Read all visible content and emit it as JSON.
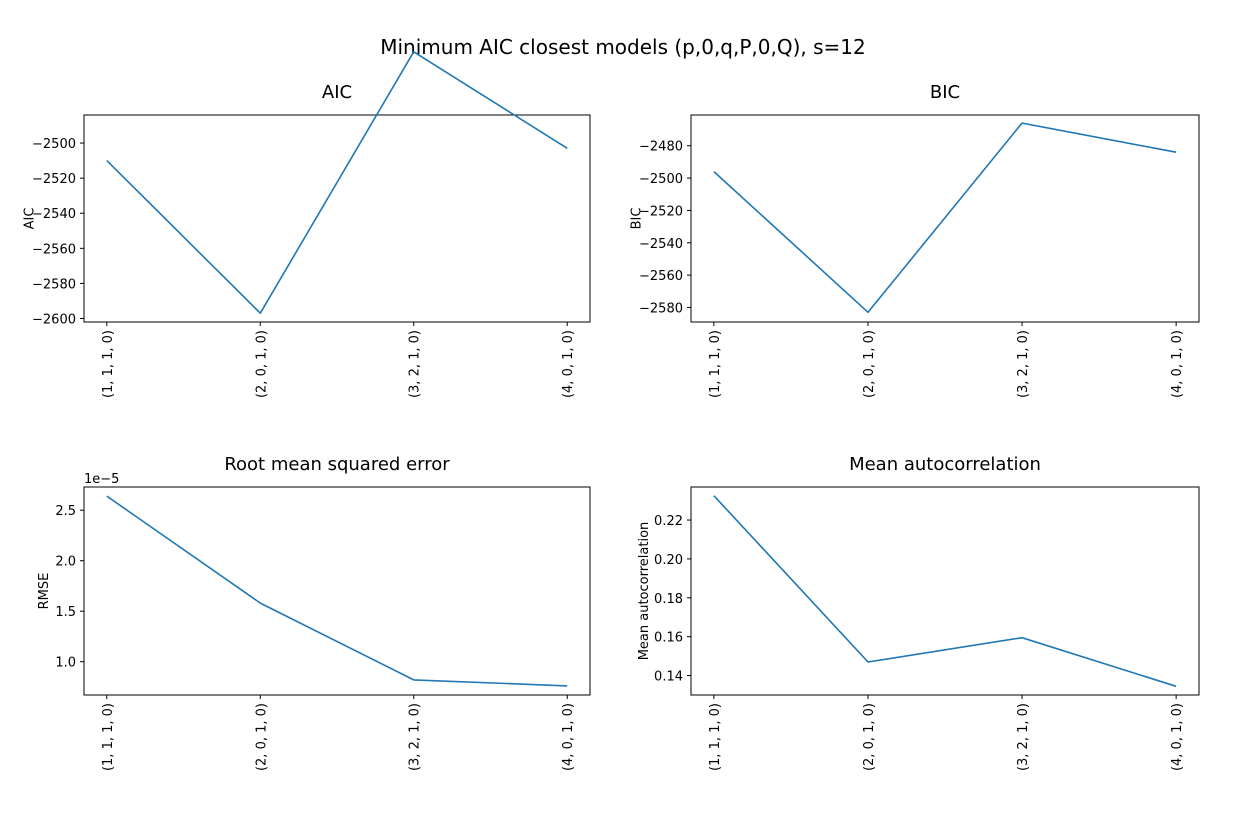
{
  "figure": {
    "suptitle": "Minimum AIC closest models (p,0,q,P,0,Q), s=12"
  },
  "chart_data": [
    {
      "type": "line",
      "title": "AIC",
      "xlabel": "",
      "ylabel": "AIC",
      "categories": [
        "(1, 1, 1, 0)",
        "(2, 0, 1, 0)",
        "(3, 2, 1, 0)",
        "(4, 0, 1, 0)"
      ],
      "values": [
        -2510,
        -2597,
        -2448,
        -2503
      ],
      "ylim": [
        -2602,
        -2484
      ],
      "yticks": [
        -2600,
        -2580,
        -2560,
        -2540,
        -2520,
        -2500
      ],
      "tick_labels": [
        "−2600",
        "−2580",
        "−2560",
        "−2540",
        "−2520",
        "−2500"
      ],
      "offset_text": "",
      "color": "#1f77b4",
      "grid": false
    },
    {
      "type": "line",
      "title": "BIC",
      "xlabel": "",
      "ylabel": "BIC",
      "categories": [
        "(1, 1, 1, 0)",
        "(2, 0, 1, 0)",
        "(3, 2, 1, 0)",
        "(4, 0, 1, 0)"
      ],
      "values": [
        -2496,
        -2583,
        -2466,
        -2484
      ],
      "ylim": [
        -2589,
        -2461
      ],
      "yticks": [
        -2580,
        -2560,
        -2540,
        -2520,
        -2500,
        -2480
      ],
      "tick_labels": [
        "−2580",
        "−2560",
        "−2540",
        "−2520",
        "−2500",
        "−2480"
      ],
      "offset_text": "",
      "color": "#1f77b4",
      "grid": false
    },
    {
      "type": "line",
      "title": "Root mean squared error",
      "xlabel": "",
      "ylabel": "RMSE",
      "categories": [
        "(1, 1, 1, 0)",
        "(2, 0, 1, 0)",
        "(3, 2, 1, 0)",
        "(4, 0, 1, 0)"
      ],
      "values": [
        2.64e-05,
        1.58e-05,
        8.2e-06,
        7.6e-06
      ],
      "ylim": [
        6.7e-06,
        2.73e-05
      ],
      "yticks": [
        1e-05,
        1.5e-05,
        2e-05,
        2.5e-05
      ],
      "tick_labels": [
        "1.0",
        "1.5",
        "2.0",
        "2.5"
      ],
      "offset_text": "1e−5",
      "color": "#1f77b4",
      "grid": false
    },
    {
      "type": "line",
      "title": "Mean autocorrelation",
      "xlabel": "",
      "ylabel": "Mean autocorrelation",
      "categories": [
        "(1, 1, 1, 0)",
        "(2, 0, 1, 0)",
        "(3, 2, 1, 0)",
        "(4, 0, 1, 0)"
      ],
      "values": [
        0.2325,
        0.147,
        0.1595,
        0.1345
      ],
      "ylim": [
        0.13,
        0.237
      ],
      "yticks": [
        0.14,
        0.16,
        0.18,
        0.2,
        0.22
      ],
      "tick_labels": [
        "0.14",
        "0.16",
        "0.18",
        "0.20",
        "0.22"
      ],
      "offset_text": "",
      "color": "#1f77b4",
      "grid": false
    }
  ]
}
